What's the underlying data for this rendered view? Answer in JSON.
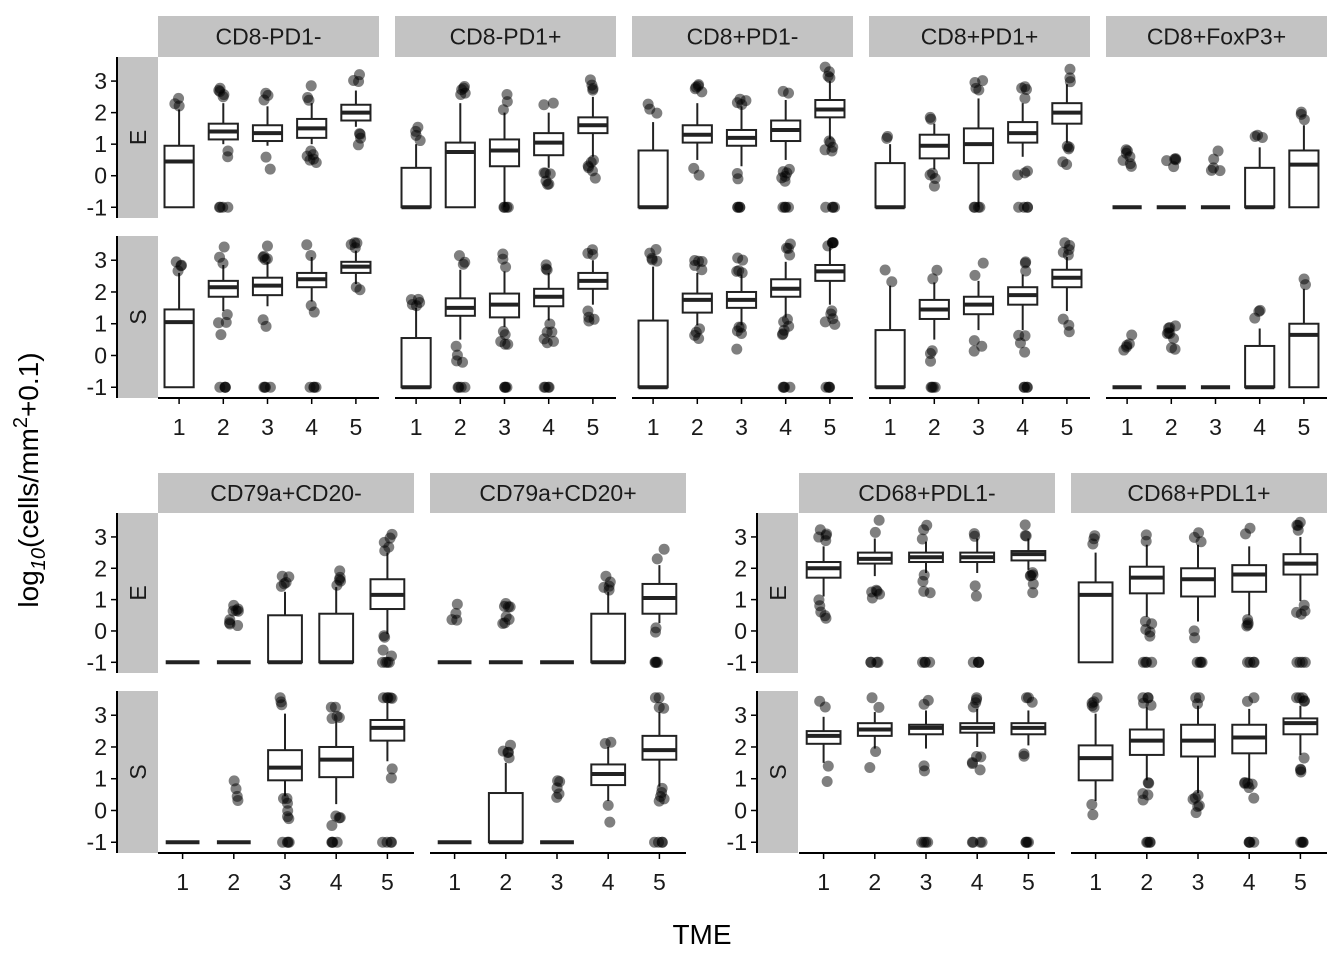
{
  "chart_data": {
    "type": "boxplot",
    "xlabel": "TME",
    "ylabel": "log10(cells/mm2+0.1)",
    "ylabel_parts": {
      "base": "log",
      "sub": "10",
      "mid": "(cells/mm",
      "sup": "2",
      "tail": "+0.1)"
    },
    "row_labels": [
      "E",
      "S"
    ],
    "x_categories": [
      "1",
      "2",
      "3",
      "4",
      "5"
    ],
    "y_ticks": [
      "-1",
      "0",
      "1",
      "2",
      "3"
    ],
    "ylim": [
      -1.15,
      3.7
    ],
    "facets": [
      {
        "name": "CD8-PD1-",
        "E": [
          [
            -1,
            -1,
            0.45,
            0.95,
            2.1
          ],
          [
            1.0,
            1.15,
            1.4,
            1.65,
            2.3
          ],
          [
            0.95,
            1.1,
            1.35,
            1.6,
            2.2
          ],
          [
            1.0,
            1.2,
            1.5,
            1.8,
            2.3
          ],
          [
            1.55,
            1.75,
            2.0,
            2.25,
            2.7
          ]
        ],
        "S": [
          [
            -1,
            -1,
            1.05,
            1.45,
            2.6
          ],
          [
            1.4,
            1.85,
            2.15,
            2.35,
            2.85
          ],
          [
            1.55,
            1.9,
            2.2,
            2.45,
            2.95
          ],
          [
            1.7,
            2.15,
            2.4,
            2.6,
            3.1
          ],
          [
            2.25,
            2.6,
            2.8,
            2.95,
            3.3
          ]
        ]
      },
      {
        "name": "CD8-PD1+",
        "E": [
          [
            -1,
            -1,
            -1,
            0.25,
            1.0
          ],
          [
            -1,
            -1,
            0.75,
            1.05,
            2.3
          ],
          [
            -1,
            0.3,
            0.8,
            1.15,
            2.0
          ],
          [
            0.25,
            0.65,
            1.05,
            1.35,
            2.0
          ],
          [
            0.6,
            1.35,
            1.6,
            1.85,
            2.5
          ]
        ],
        "S": [
          [
            -1,
            -1,
            -1,
            0.55,
            1.5
          ],
          [
            0.5,
            1.25,
            1.5,
            1.8,
            2.7
          ],
          [
            0.9,
            1.2,
            1.6,
            1.95,
            2.65
          ],
          [
            1.1,
            1.55,
            1.85,
            2.1,
            2.6
          ],
          [
            1.6,
            2.1,
            2.35,
            2.6,
            3.0
          ]
        ]
      },
      {
        "name": "CD8+PD1-",
        "E": [
          [
            -1,
            -1,
            -1,
            0.8,
            1.7
          ],
          [
            0.5,
            1.05,
            1.3,
            1.6,
            2.3
          ],
          [
            0.3,
            0.95,
            1.2,
            1.45,
            2.2
          ],
          [
            0.5,
            1.1,
            1.45,
            1.75,
            2.4
          ],
          [
            1.15,
            1.85,
            2.1,
            2.4,
            3.0
          ]
        ],
        "S": [
          [
            -1,
            -1,
            -1,
            1.1,
            2.8
          ],
          [
            0.95,
            1.35,
            1.75,
            1.95,
            2.6
          ],
          [
            0.95,
            1.5,
            1.75,
            2.0,
            2.55
          ],
          [
            1.2,
            1.85,
            2.1,
            2.4,
            2.95
          ],
          [
            1.6,
            2.35,
            2.65,
            2.85,
            3.4
          ]
        ]
      },
      {
        "name": "CD8+PD1+",
        "E": [
          [
            -1,
            -1,
            -1,
            0.4,
            1.0
          ],
          [
            0.2,
            0.55,
            0.95,
            1.3,
            1.65
          ],
          [
            -1,
            0.4,
            1.0,
            1.5,
            2.45
          ],
          [
            0.6,
            1.05,
            1.35,
            1.7,
            2.3
          ],
          [
            1.05,
            1.65,
            2.0,
            2.3,
            2.9
          ]
        ],
        "S": [
          [
            -1,
            -1,
            -1,
            0.8,
            2.2
          ],
          [
            0.5,
            1.15,
            1.45,
            1.75,
            2.3
          ],
          [
            0.8,
            1.3,
            1.6,
            1.85,
            2.35
          ],
          [
            0.8,
            1.6,
            1.9,
            2.15,
            2.55
          ],
          [
            1.4,
            2.15,
            2.45,
            2.7,
            3.1
          ]
        ]
      },
      {
        "name": "CD8+FoxP3+",
        "E": [
          [
            -1,
            -1,
            -1,
            -1,
            -1
          ],
          [
            -1,
            -1,
            -1,
            -1,
            -1
          ],
          [
            -1,
            -1,
            -1,
            -1,
            -1
          ],
          [
            -1,
            -1,
            -1,
            0.25,
            0.9
          ],
          [
            -1,
            -1,
            0.35,
            0.8,
            1.6
          ]
        ],
        "S": [
          [
            -1,
            -1,
            -1,
            -1,
            -1
          ],
          [
            -1,
            -1,
            -1,
            -1,
            -1
          ],
          [
            -1,
            -1,
            -1,
            -1,
            -1
          ],
          [
            -1,
            -1,
            -1,
            0.3,
            0.85
          ],
          [
            -1,
            -1,
            0.65,
            1.0,
            2.1
          ]
        ]
      },
      {
        "name": "CD79a+CD20-",
        "E": [
          [
            -1,
            -1,
            -1,
            -1,
            -1
          ],
          [
            -1,
            -1,
            -1,
            -1,
            -1
          ],
          [
            -1,
            -1,
            -1,
            0.5,
            1.25
          ],
          [
            -1,
            -1,
            -1,
            0.55,
            1.4
          ],
          [
            -0.1,
            0.7,
            1.15,
            1.65,
            2.5
          ]
        ],
        "S": [
          [
            -1,
            -1,
            -1,
            -1,
            -1
          ],
          [
            -1,
            -1,
            -1,
            -1,
            -1
          ],
          [
            0.45,
            0.95,
            1.35,
            1.9,
            3.05
          ],
          [
            0.2,
            1.05,
            1.6,
            2.0,
            2.8
          ],
          [
            1.55,
            2.2,
            2.6,
            2.85,
            3.4
          ]
        ]
      },
      {
        "name": "CD79a+CD20+",
        "E": [
          [
            -1,
            -1,
            -1,
            -1,
            -1
          ],
          [
            -1,
            -1,
            -1,
            -1,
            -1
          ],
          [
            -1,
            -1,
            -1,
            -1,
            -1
          ],
          [
            -1,
            -1,
            -1,
            0.55,
            1.25
          ],
          [
            0.25,
            0.55,
            1.05,
            1.5,
            2.1
          ]
        ],
        "S": [
          [
            -1,
            -1,
            -1,
            -1,
            -1
          ],
          [
            -1,
            -1,
            -1,
            0.55,
            1.5
          ],
          [
            -1,
            -1,
            -1,
            -1,
            -1
          ],
          [
            0.3,
            0.8,
            1.15,
            1.45,
            2.0
          ],
          [
            0.75,
            1.6,
            1.9,
            2.35,
            3.1
          ]
        ]
      },
      {
        "name": "CD68+PDL1-",
        "E": [
          [
            1.1,
            1.7,
            2.0,
            2.2,
            2.7
          ],
          [
            1.75,
            2.15,
            2.3,
            2.5,
            2.95
          ],
          [
            1.85,
            2.2,
            2.35,
            2.5,
            2.85
          ],
          [
            1.85,
            2.2,
            2.35,
            2.5,
            2.95
          ],
          [
            1.95,
            2.25,
            2.45,
            2.55,
            2.95
          ]
        ],
        "S": [
          [
            1.5,
            2.1,
            2.35,
            2.5,
            2.95
          ],
          [
            1.95,
            2.35,
            2.55,
            2.75,
            3.1
          ],
          [
            1.95,
            2.4,
            2.6,
            2.7,
            3.15
          ],
          [
            2.0,
            2.45,
            2.6,
            2.75,
            3.2
          ],
          [
            2.05,
            2.4,
            2.6,
            2.75,
            3.15
          ]
        ]
      },
      {
        "name": "CD68+PDL1+",
        "E": [
          [
            -1,
            -1,
            1.15,
            1.55,
            2.5
          ],
          [
            0.45,
            1.2,
            1.7,
            2.05,
            2.75
          ],
          [
            0.3,
            1.1,
            1.65,
            2.0,
            2.75
          ],
          [
            0.5,
            1.25,
            1.8,
            2.1,
            2.7
          ],
          [
            0.95,
            1.8,
            2.15,
            2.45,
            3.0
          ]
        ],
        "S": [
          [
            0.3,
            0.95,
            1.65,
            2.05,
            3.05
          ],
          [
            0.95,
            1.75,
            2.2,
            2.55,
            3.25
          ],
          [
            0.55,
            1.7,
            2.2,
            2.7,
            3.3
          ],
          [
            0.95,
            1.8,
            2.3,
            2.7,
            3.2
          ],
          [
            1.75,
            2.4,
            2.75,
            2.9,
            3.3
          ]
        ]
      }
    ],
    "grid": false,
    "legend": "none"
  }
}
